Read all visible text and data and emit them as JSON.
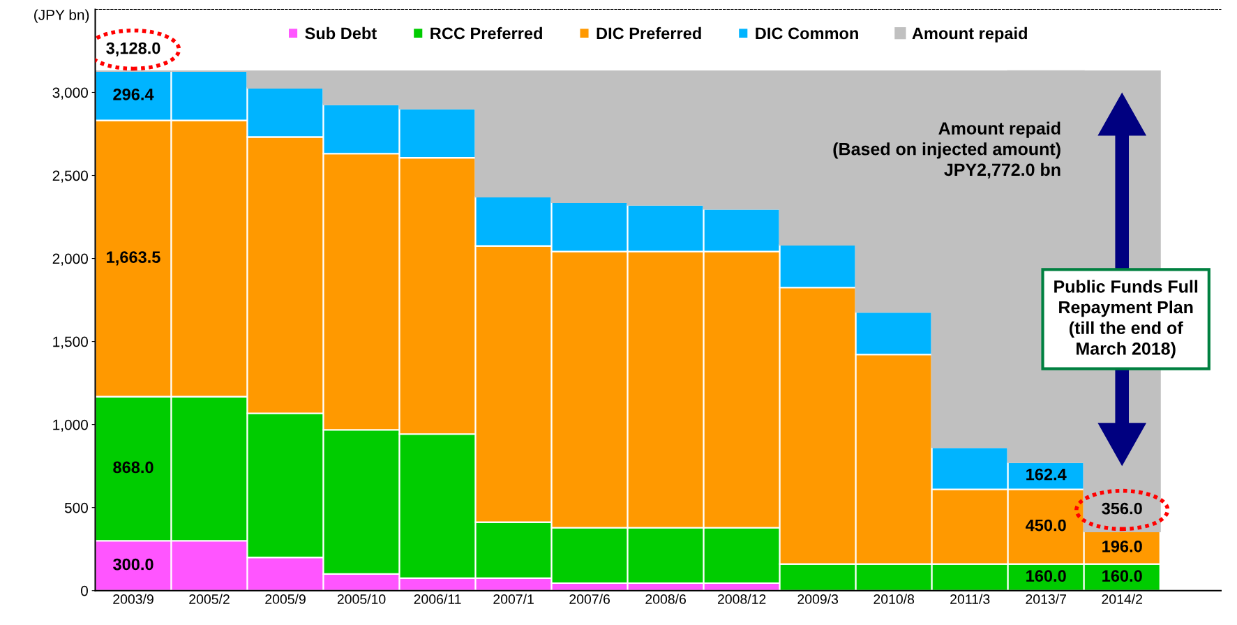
{
  "chart_data": {
    "type": "bar",
    "stacked": true,
    "categories": [
      "2003/9",
      "2005/2",
      "2005/9",
      "2005/10",
      "2006/11",
      "2007/1",
      "2007/6",
      "2008/6",
      "2008/12",
      "2009/3",
      "2010/8",
      "2011/3",
      "2013/7",
      "2014/2"
    ],
    "series": [
      {
        "name": "Sub Debt",
        "color": "#ff55ff",
        "values": [
          300,
          300,
          200,
          100,
          75,
          75,
          45,
          45,
          45,
          0,
          0,
          0,
          0,
          0
        ],
        "value_labels": [
          "300.0",
          null,
          null,
          null,
          null,
          null,
          null,
          null,
          null,
          null,
          null,
          null,
          null,
          null
        ]
      },
      {
        "name": "RCC Preferred",
        "color": "#00cc00",
        "values": [
          868,
          868,
          868,
          868,
          868,
          337,
          334,
          334,
          334,
          160,
          160,
          160,
          160,
          160
        ],
        "value_labels": [
          "868.0",
          null,
          null,
          null,
          null,
          null,
          null,
          null,
          null,
          null,
          null,
          null,
          "160.0",
          "160.0"
        ]
      },
      {
        "name": "DIC Preferred",
        "color": "#ff9900",
        "values": [
          1663.5,
          1663.5,
          1663.5,
          1663.5,
          1663.5,
          1663.5,
          1663.5,
          1663.5,
          1663.5,
          1665,
          1262,
          450,
          450,
          196
        ],
        "value_labels": [
          "1,663.5",
          null,
          null,
          null,
          null,
          null,
          null,
          null,
          null,
          null,
          null,
          null,
          "450.0",
          "196.0"
        ]
      },
      {
        "name": "DIC Common",
        "color": "#00b4ff",
        "values": [
          296.4,
          296.4,
          296.4,
          296.4,
          296.4,
          296.4,
          296.4,
          280,
          256,
          257,
          256,
          253,
          162.4,
          0
        ],
        "value_labels": [
          "296.4",
          null,
          null,
          null,
          null,
          null,
          null,
          null,
          null,
          null,
          null,
          null,
          "162.4",
          null
        ]
      },
      {
        "name": "Amount repaid",
        "color": "#c0c0c0",
        "values": [
          0,
          0,
          100,
          200,
          225,
          756,
          789,
          805,
          829,
          1046,
          1450,
          2265,
          2356,
          2772
        ]
      }
    ],
    "ylabel": "(JPY bn)",
    "ylim": [
      0,
      3500
    ],
    "yticks": [
      0,
      500,
      {
        "value": 1000,
        "label": "1,000"
      },
      {
        "value": 1500,
        "label": "1,500"
      },
      {
        "value": 2000,
        "label": "2,000"
      },
      {
        "value": 2500,
        "label": "2,500"
      },
      {
        "value": 3000,
        "label": "3,000"
      }
    ],
    "annotations": [
      {
        "text": "3,128.0",
        "x": "2003/9",
        "y": 3128
      },
      {
        "text": "356.0",
        "x": "2014/2",
        "y": 356
      },
      "Amount repaid\n(Based on injected amount)\nJPY2,772.0 bn",
      "Public Funds Full\nRepayment Plan\n(till the end of\nMarch 2018)"
    ],
    "legend": "top",
    "grid": false
  }
}
